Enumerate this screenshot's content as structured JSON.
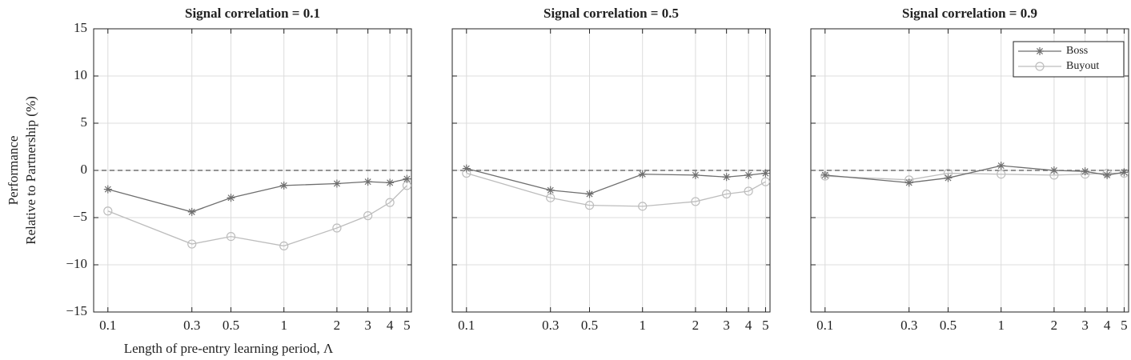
{
  "chart_data": [
    {
      "type": "line",
      "title": "Signal correlation = 0.1",
      "xlabel": "Length of pre-entry learning period, Λ",
      "ylabel": [
        "Performance",
        "Relative to Partnership (%)"
      ],
      "x": [
        0.1,
        0.3,
        0.5,
        1,
        2,
        3,
        4,
        5
      ],
      "xscale": "log",
      "xlim": [
        0.083,
        5.3
      ],
      "xticks": [
        0.1,
        0.3,
        0.5,
        1,
        2,
        3,
        4,
        5
      ],
      "ylim": [
        -15,
        15
      ],
      "yticks": [
        {
          "value": -15,
          "label": "−15"
        },
        {
          "value": -10,
          "label": "−10"
        },
        {
          "value": -5,
          "label": "−5"
        },
        0,
        5,
        10,
        15
      ],
      "ytick_labels": true,
      "grid": true,
      "reference_line": 0,
      "series": [
        {
          "name": "Boss",
          "color": "#6e6e6e",
          "marker": "*",
          "values": [
            -2.0,
            -4.4,
            -2.9,
            -1.6,
            -1.4,
            -1.2,
            -1.3,
            -0.9
          ]
        },
        {
          "name": "Buyout",
          "color": "#bdbdbd",
          "marker": "o",
          "values": [
            -4.3,
            -7.8,
            -7.0,
            -8.0,
            -6.1,
            -4.8,
            -3.4,
            -1.6
          ]
        }
      ]
    },
    {
      "type": "line",
      "title": "Signal correlation = 0.5",
      "x": [
        0.1,
        0.3,
        0.5,
        1,
        2,
        3,
        4,
        5
      ],
      "xscale": "log",
      "xlim": [
        0.083,
        5.3
      ],
      "xticks": [
        0.1,
        0.3,
        0.5,
        1,
        2,
        3,
        4,
        5
      ],
      "ylim": [
        -15,
        15
      ],
      "yticks": [
        -15,
        -10,
        -5,
        0,
        5,
        10,
        15
      ],
      "ytick_labels": false,
      "grid": true,
      "reference_line": 0,
      "series": [
        {
          "name": "Boss",
          "color": "#6e6e6e",
          "marker": "*",
          "values": [
            0.2,
            -2.1,
            -2.5,
            -0.4,
            -0.5,
            -0.7,
            -0.5,
            -0.3
          ]
        },
        {
          "name": "Buyout",
          "color": "#bdbdbd",
          "marker": "o",
          "values": [
            -0.3,
            -2.9,
            -3.7,
            -3.8,
            -3.3,
            -2.5,
            -2.2,
            -1.2
          ]
        }
      ]
    },
    {
      "type": "line",
      "title": "Signal correlation = 0.9",
      "x": [
        0.1,
        0.3,
        0.5,
        1,
        2,
        3,
        4,
        5
      ],
      "xscale": "log",
      "xlim": [
        0.083,
        5.3
      ],
      "xticks": [
        0.1,
        0.3,
        0.5,
        1,
        2,
        3,
        4,
        5
      ],
      "ylim": [
        -15,
        15
      ],
      "yticks": [
        -15,
        -10,
        -5,
        0,
        5,
        10,
        15
      ],
      "ytick_labels": false,
      "grid": true,
      "reference_line": 0,
      "legend": "upper right",
      "series": [
        {
          "name": "Boss",
          "color": "#6e6e6e",
          "marker": "*",
          "values": [
            -0.5,
            -1.3,
            -0.8,
            0.5,
            0.0,
            -0.1,
            -0.5,
            -0.2
          ]
        },
        {
          "name": "Buyout",
          "color": "#bdbdbd",
          "marker": "o",
          "values": [
            -0.6,
            -1.0,
            -0.3,
            -0.4,
            -0.5,
            -0.4,
            -0.3,
            -0.3
          ]
        }
      ]
    }
  ]
}
